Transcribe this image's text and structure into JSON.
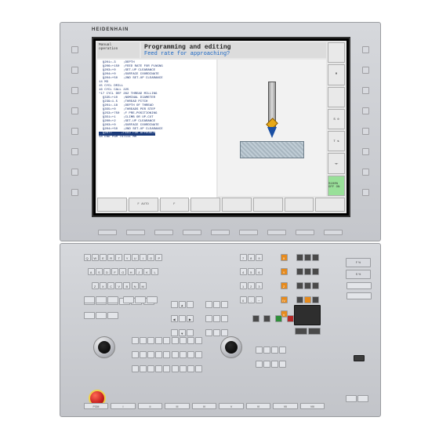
{
  "brand": "HEIDENHAIN",
  "header": {
    "mode_line1": "Manual",
    "mode_line2": "operation",
    "title": "Programming and editing",
    "subtitle": "Feed rate for approaching?"
  },
  "code_lines": [
    "  Q201=-3    ;DEPTH",
    "  Q206=+150  ;FEED RATE FOR PLNGNG",
    "  Q203=+0    ;SET-UP CLEARANCE",
    "  Q204=+0    ;SURFACE COORDINATE",
    "  Q204=+50   ;2ND SET-UP CLEARANCE",
    "14 M3",
    "15 CYCL DRILL",
    "16 CYCL CALL 225",
    "*17 CYCL DEF 262 THREAD MILLING",
    "  Q335=+10   ;NOMINAL DIAMETER",
    "  Q239=1.5   ;THREAD PITCH",
    "  Q201=-18   ;DEPTH OF THREAD",
    "  Q355=+0    ;THREADS PER STEP",
    "  Q253=+750  ;F PRE-POSITIONING",
    "  Q351=+1    ;CLIMB OR UP-CUT",
    "  Q200=+2    ;SET-UP CLEARANCE",
    "  Q203=+0    ;SURFACE COORDINATE",
    "  Q204=+50   ;2ND SET-UP CLEARANCE",
    "  Q207=     ;FEED FOR APPROACH",
    "18 END PGM TST111 MM"
  ],
  "highlight_index": 18,
  "right_softkeys": [
    "",
    "M",
    "",
    "S  ⊙",
    "T ⇅",
    "⇥⇤",
    "S100%\nOFF ON"
  ],
  "bottom_softkeys": [
    "",
    "F AUTO",
    "F",
    "",
    "",
    "",
    "",
    ""
  ],
  "qwerty": [
    [
      "Q",
      "W",
      "E",
      "R",
      "T",
      "Y",
      "U",
      "I",
      "O",
      "P"
    ],
    [
      "A",
      "S",
      "D",
      "F",
      "G",
      "H",
      "J",
      "K",
      "L"
    ],
    [
      "Z",
      "X",
      "C",
      "V",
      "B",
      "N",
      "M"
    ]
  ],
  "numpad_rows": [
    [
      "7",
      "8",
      "9"
    ],
    [
      "4",
      "5",
      "6"
    ],
    [
      "1",
      "2",
      "3"
    ],
    [
      "0",
      ".",
      "−"
    ]
  ],
  "axis_keys": [
    "X",
    "Y",
    "Z",
    "IV",
    "V"
  ],
  "override_labels": [
    "F %",
    "S %"
  ],
  "fn_keys": [
    "PGM",
    "I",
    "II",
    "III",
    "IV",
    "V",
    "VI",
    "VII",
    "VIII"
  ],
  "colors": {
    "bezel": "#d0d2d7",
    "screen_bg": "#e7e7e7",
    "code_text": "#152d6b",
    "highlight_bg": "#1a3a7a",
    "prompt": "#1a66c4",
    "tool_body": "#b9bfc5",
    "tool_tip": "#1a4fa3",
    "insert": "#e6a817",
    "workpiece": "#b3c1cb",
    "orange_key": "#e68a1c",
    "green_key": "#2f8f3a",
    "red_key": "#b52828",
    "estop": "#c61f1f"
  }
}
